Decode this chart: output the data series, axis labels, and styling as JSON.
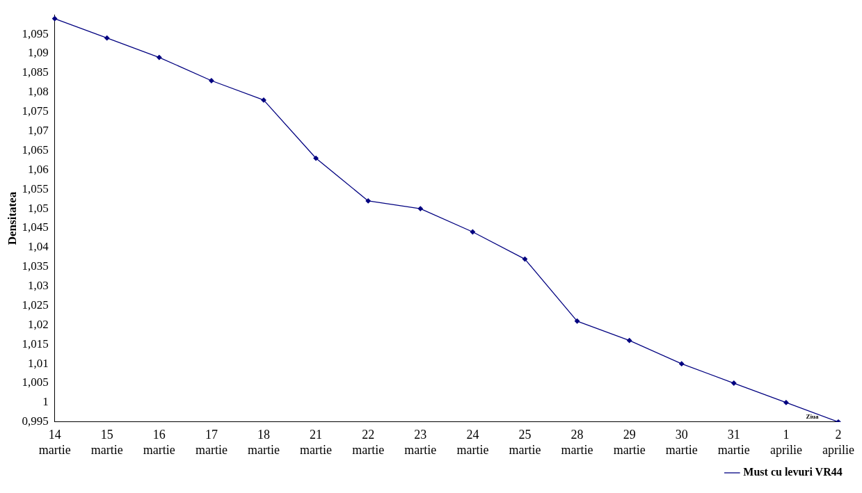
{
  "chart_data": {
    "type": "line",
    "xlabel": "Ziua",
    "ylabel": "Densitatea",
    "categories": [
      "14 martie",
      "15 martie",
      "16 martie",
      "17 martie",
      "18 martie",
      "21 martie",
      "22 martie",
      "23 martie",
      "24 martie",
      "25 martie",
      "28 martie",
      "29 martie",
      "30 martie",
      "31 martie",
      "1 aprilie",
      "2 aprilie"
    ],
    "series": [
      {
        "name": "Must cu levuri VR44",
        "color": "#000080",
        "values": [
          1.099,
          1.094,
          1.089,
          1.083,
          1.078,
          1.063,
          1.052,
          1.05,
          1.044,
          1.037,
          1.021,
          1.016,
          1.01,
          1.005,
          1.0,
          0.995
        ]
      }
    ],
    "ylim": [
      0.995,
      1.1
    ],
    "yticks": [
      {
        "value": 0.995,
        "label": "0,995"
      },
      {
        "value": 1,
        "label": "1"
      },
      {
        "value": 1.005,
        "label": "1,005"
      },
      {
        "value": 1.01,
        "label": "1,01"
      },
      {
        "value": 1.015,
        "label": "1,015"
      },
      {
        "value": 1.02,
        "label": "1,02"
      },
      {
        "value": 1.025,
        "label": "1,025"
      },
      {
        "value": 1.03,
        "label": "1,03"
      },
      {
        "value": 1.035,
        "label": "1,035"
      },
      {
        "value": 1.04,
        "label": "1,04"
      },
      {
        "value": 1.045,
        "label": "1,045"
      },
      {
        "value": 1.05,
        "label": "1,05"
      },
      {
        "value": 1.055,
        "label": "1,055"
      },
      {
        "value": 1.06,
        "label": "1,06"
      },
      {
        "value": 1.065,
        "label": "1,065"
      },
      {
        "value": 1.07,
        "label": "1,07"
      },
      {
        "value": 1.075,
        "label": "1,075"
      },
      {
        "value": 1.08,
        "label": "1,08"
      },
      {
        "value": 1.085,
        "label": "1,085"
      },
      {
        "value": 1.09,
        "label": "1,09"
      },
      {
        "value": 1.095,
        "label": "1,095"
      }
    ],
    "grid": false,
    "legend": "bottom right",
    "marker": "diamond",
    "line_style": "solid"
  }
}
